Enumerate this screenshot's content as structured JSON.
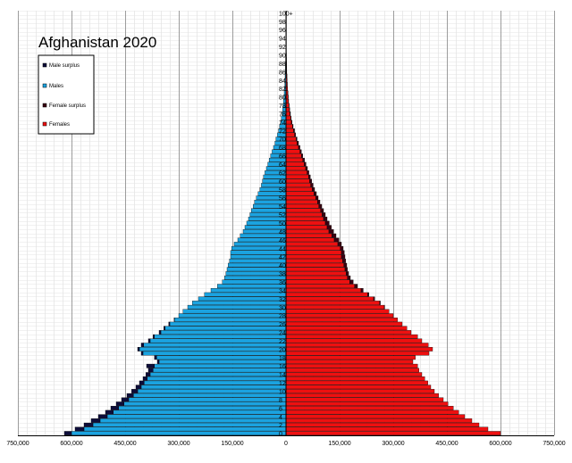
{
  "chart_data": {
    "type": "bar",
    "title": "Afghanistan 2020",
    "orientation": "horizontal-butterfly",
    "xlim": [
      -750000,
      750000
    ],
    "x_ticks": [
      -750000,
      -600000,
      -450000,
      -300000,
      -150000,
      0,
      150000,
      300000,
      450000,
      600000,
      750000
    ],
    "x_tick_labels": [
      "750,000",
      "600,000",
      "450,000",
      "300,000",
      "150,000",
      "0",
      "150,000",
      "300,000",
      "450,000",
      "600,000",
      "750,000"
    ],
    "age_tick_labels": [
      "0",
      "2",
      "4",
      "6",
      "8",
      "10",
      "12",
      "14",
      "16",
      "18",
      "20",
      "22",
      "24",
      "26",
      "28",
      "30",
      "32",
      "34",
      "36",
      "38",
      "40",
      "42",
      "44",
      "46",
      "48",
      "50",
      "52",
      "54",
      "56",
      "58",
      "60",
      "62",
      "64",
      "66",
      "68",
      "70",
      "72",
      "74",
      "76",
      "78",
      "80",
      "82",
      "84",
      "86",
      "88",
      "90",
      "92",
      "94",
      "96",
      "98",
      "100+"
    ],
    "grid": true,
    "legend_position": "top-left",
    "legend": [
      {
        "label": "Male surplus",
        "color": "#0d0d3a"
      },
      {
        "label": "Males",
        "color": "#1ba3e0"
      },
      {
        "label": "Female surplus",
        "color": "#3a0012"
      },
      {
        "label": "Females",
        "color": "#ee1010"
      }
    ],
    "categories": [
      "0",
      "1",
      "2",
      "3",
      "4",
      "5",
      "6",
      "7",
      "8",
      "9",
      "10",
      "11",
      "12",
      "13",
      "14",
      "15",
      "16",
      "17",
      "18",
      "19",
      "20",
      "21",
      "22",
      "23",
      "24",
      "25",
      "26",
      "27",
      "28",
      "29",
      "30",
      "31",
      "32",
      "33",
      "34",
      "35",
      "36",
      "37",
      "38",
      "39",
      "40",
      "41",
      "42",
      "43",
      "44",
      "45",
      "46",
      "47",
      "48",
      "49",
      "50",
      "51",
      "52",
      "53",
      "54",
      "55",
      "56",
      "57",
      "58",
      "59",
      "60",
      "61",
      "62",
      "63",
      "64",
      "65",
      "66",
      "67",
      "68",
      "69",
      "70",
      "71",
      "72",
      "73",
      "74",
      "75",
      "76",
      "77",
      "78",
      "79",
      "80",
      "81",
      "82",
      "83",
      "84",
      "85",
      "86",
      "87",
      "88",
      "89",
      "90",
      "91",
      "92",
      "93",
      "94",
      "95",
      "96",
      "97",
      "98",
      "99",
      "100+"
    ],
    "series": [
      {
        "name": "Males",
        "values": [
          620000,
          590000,
          565000,
          545000,
          525000,
          505000,
          490000,
          475000,
          460000,
          445000,
          432000,
          420000,
          410000,
          400000,
          392000,
          385000,
          390000,
          360000,
          368000,
          405000,
          415000,
          405000,
          385000,
          372000,
          355000,
          342000,
          328000,
          313000,
          300000,
          288000,
          275000,
          262000,
          245000,
          228000,
          210000,
          192000,
          178000,
          172000,
          168000,
          165000,
          162000,
          158000,
          155000,
          155000,
          152000,
          145000,
          135000,
          128000,
          120000,
          115000,
          110000,
          105000,
          101000,
          97000,
          92000,
          88000,
          83000,
          78000,
          73000,
          69000,
          66000,
          63000,
          59000,
          55000,
          51000,
          47000,
          43000,
          39000,
          35000,
          31000,
          28000,
          24000,
          21000,
          18000,
          15000,
          13000,
          11000,
          9500,
          8200,
          7000,
          6000,
          5000,
          4200,
          3500,
          3000,
          2500,
          2100,
          1800,
          1500,
          1200,
          1000,
          800,
          650,
          500,
          400,
          300,
          250,
          200,
          150,
          100,
          80
        ]
      },
      {
        "name": "Females",
        "values": [
          600000,
          565000,
          540000,
          520000,
          500000,
          483000,
          468000,
          453000,
          440000,
          427000,
          415000,
          405000,
          397000,
          388000,
          380000,
          372000,
          368000,
          355000,
          362000,
          400000,
          410000,
          398000,
          380000,
          368000,
          350000,
          338000,
          325000,
          312000,
          300000,
          288000,
          276000,
          264000,
          248000,
          232000,
          216000,
          200000,
          188000,
          180000,
          175000,
          172000,
          170000,
          167000,
          165000,
          163000,
          160000,
          155000,
          148000,
          140000,
          133000,
          127000,
          121000,
          115000,
          110000,
          105000,
          100000,
          95000,
          90000,
          85000,
          80000,
          76000,
          72000,
          68000,
          64000,
          60000,
          56000,
          52000,
          47000,
          43000,
          39000,
          35000,
          31000,
          27000,
          24000,
          20000,
          17000,
          14500,
          12500,
          10500,
          9000,
          7500,
          6400,
          5400,
          4500,
          3800,
          3200,
          2700,
          2200,
          1900,
          1600,
          1300,
          1050,
          850,
          700,
          550,
          430,
          330,
          260,
          200,
          150,
          110,
          90
        ]
      }
    ]
  }
}
